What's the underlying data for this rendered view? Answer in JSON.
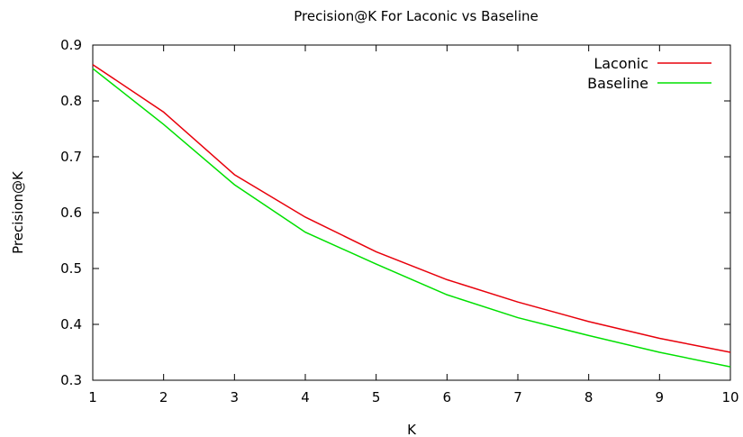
{
  "chart_data": {
    "type": "line",
    "title": "Precision@K For Laconic vs Baseline",
    "xlabel": "K",
    "ylabel": "Precision@K",
    "x": [
      1,
      2,
      3,
      4,
      5,
      6,
      7,
      8,
      9,
      10
    ],
    "xlim": [
      1,
      10
    ],
    "ylim": [
      0.3,
      0.9
    ],
    "xticks": [
      "1",
      "2",
      "3",
      "4",
      "5",
      "6",
      "7",
      "8",
      "9",
      "10"
    ],
    "yticks": [
      "0.3",
      "0.4",
      "0.5",
      "0.6",
      "0.7",
      "0.8",
      "0.9"
    ],
    "grid": false,
    "legend_position": "top-right",
    "series": [
      {
        "name": "Laconic",
        "color": "#e8000b",
        "values": [
          0.865,
          0.78,
          0.668,
          0.592,
          0.53,
          0.48,
          0.44,
          0.405,
          0.375,
          0.35
        ]
      },
      {
        "name": "Baseline",
        "color": "#00e000",
        "values": [
          0.858,
          0.758,
          0.65,
          0.565,
          0.508,
          0.453,
          0.412,
          0.38,
          0.35,
          0.324
        ]
      }
    ]
  }
}
